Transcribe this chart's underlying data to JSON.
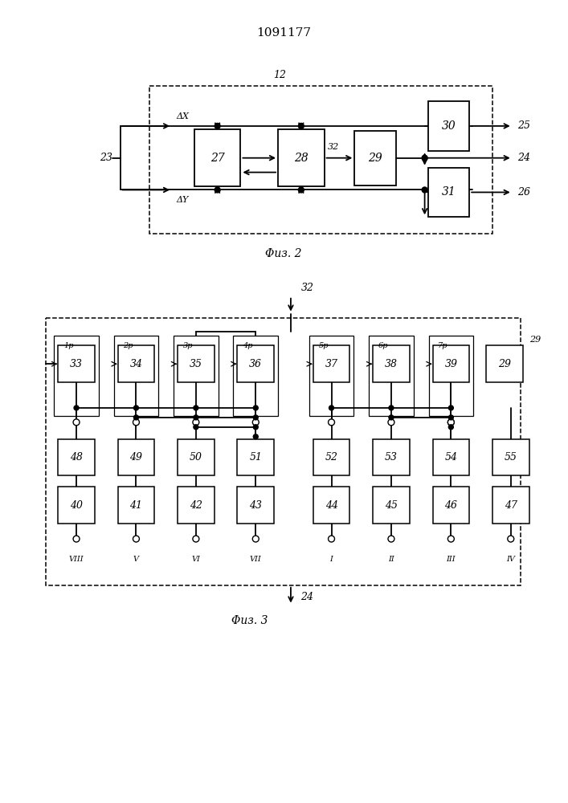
{
  "title": "1091177",
  "fig1_caption": "Φиз. 2",
  "fig2_caption": "Φиз. 3",
  "bg_color": "#ffffff"
}
